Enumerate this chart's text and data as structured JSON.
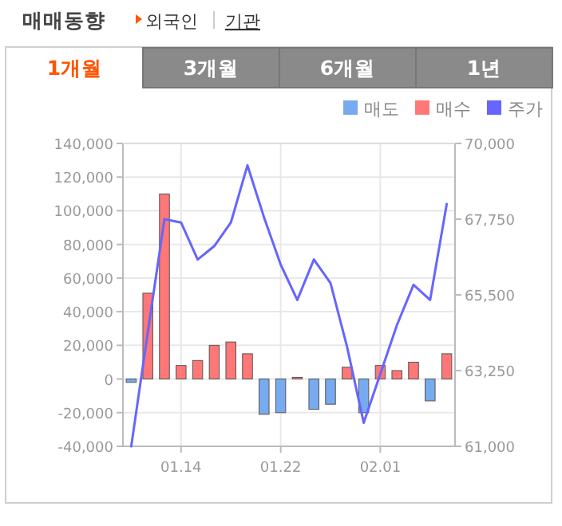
{
  "chart_data": {
    "type": "bar",
    "title": "매매동향",
    "annotations": [
      "외국인",
      "기관",
      "1개월",
      "3개월",
      "6개월",
      "1년"
    ],
    "categories": [
      null,
      null,
      null,
      "01.14",
      null,
      null,
      null,
      null,
      null,
      "01.22",
      null,
      null,
      null,
      null,
      null,
      "02.01",
      null,
      null,
      null,
      null
    ],
    "series": [
      {
        "name": "매도",
        "color": "#77aaee",
        "values": [
          -2000,
          null,
          null,
          null,
          null,
          null,
          null,
          null,
          -21000,
          -20000,
          null,
          -18000,
          -15000,
          null,
          -20000,
          null,
          null,
          null,
          -13000,
          null
        ]
      },
      {
        "name": "매수",
        "color": "#ff7777",
        "values": [
          null,
          51000,
          110000,
          8000,
          11000,
          20000,
          22000,
          15000,
          null,
          null,
          1000,
          null,
          null,
          7000,
          null,
          8000,
          5000,
          10000,
          null,
          15000
        ]
      },
      {
        "name": "주가",
        "type": "line",
        "axis": "y2",
        "color": "#6666ff",
        "values": [
          61000,
          64400,
          67750,
          67650,
          66550,
          66950,
          67650,
          69350,
          67800,
          66400,
          65350,
          66550,
          65850,
          63950,
          61700,
          63150,
          64600,
          65800,
          65350,
          68200
        ]
      }
    ],
    "ylim": [
      -40000,
      140000
    ],
    "yticks": [
      {
        "value": -40000,
        "label": "-40,000"
      },
      {
        "value": -20000,
        "label": "-20,000"
      },
      0,
      {
        "value": 20000,
        "label": "20,000"
      },
      {
        "value": 40000,
        "label": "40,000"
      },
      {
        "value": 60000,
        "label": "60,000"
      },
      {
        "value": 80000,
        "label": "80,000"
      },
      {
        "value": 100000,
        "label": "100,000"
      },
      {
        "value": 120000,
        "label": "120,000"
      },
      {
        "value": 140000,
        "label": "140,000"
      }
    ],
    "y2lim": [
      61000,
      70000
    ],
    "y2ticks": [
      {
        "value": 61000,
        "label": "61,000"
      },
      {
        "value": 63250,
        "label": "63,250"
      },
      {
        "value": 65500,
        "label": "65,500"
      },
      {
        "value": 67750,
        "label": "67,750"
      },
      {
        "value": 70000,
        "label": "70,000"
      }
    ],
    "grid": true,
    "legend": "top right"
  }
}
